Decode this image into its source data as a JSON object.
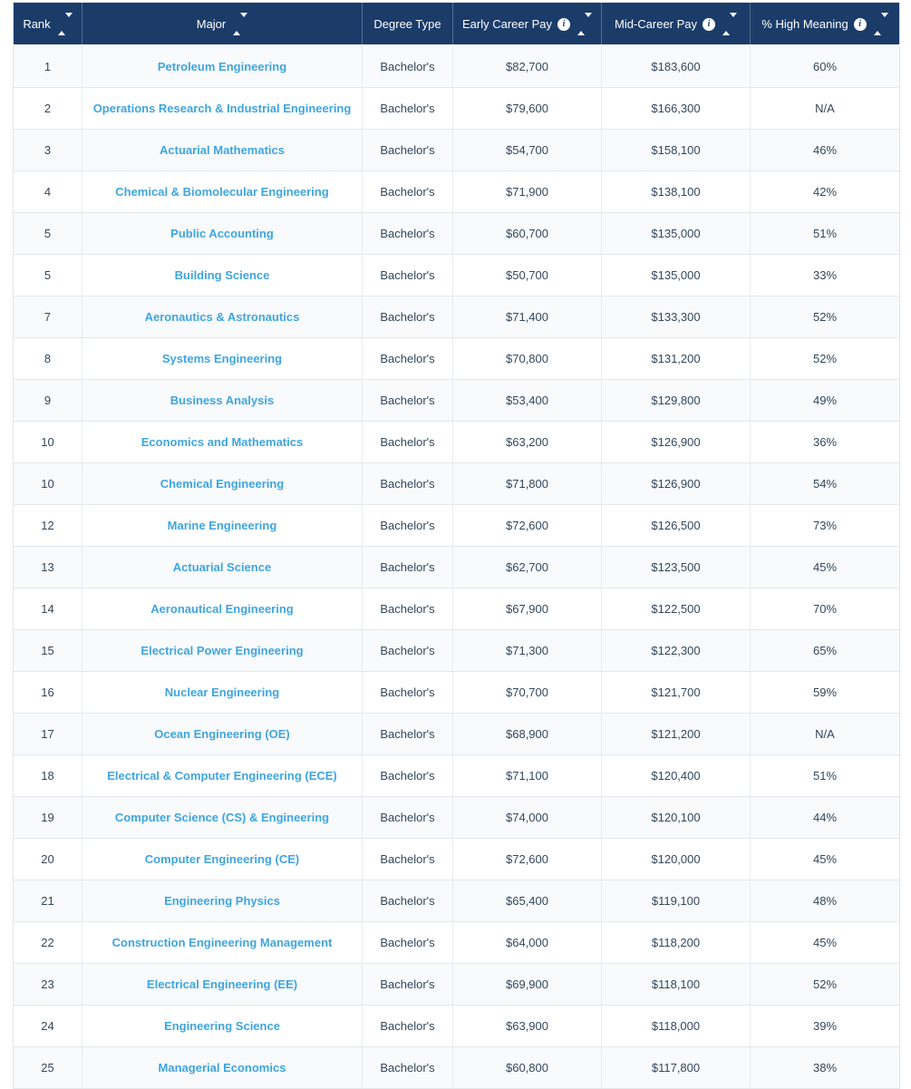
{
  "colors": {
    "header_bg": "#1b3c69",
    "header_text": "#ffffff",
    "link_blue": "#3fa5e0",
    "cell_text": "#33475c",
    "row_stripe": "#f8fafc",
    "border": "#e4e7eb"
  },
  "table": {
    "columns": [
      {
        "key": "rank",
        "label": "Rank",
        "sortable": true,
        "info": false
      },
      {
        "key": "major",
        "label": "Major",
        "sortable": true,
        "info": false
      },
      {
        "key": "degree",
        "label": "Degree Type",
        "sortable": false,
        "info": false
      },
      {
        "key": "early",
        "label": "Early Career Pay",
        "sortable": true,
        "info": true
      },
      {
        "key": "mid",
        "label": "Mid-Career Pay",
        "sortable": true,
        "info": true
      },
      {
        "key": "meaning",
        "label": "% High Meaning",
        "sortable": true,
        "info": true
      }
    ],
    "info_icon_glyph": "i",
    "rows": [
      {
        "rank": "1",
        "major": "Petroleum Engineering",
        "degree": "Bachelor's",
        "early": "$82,700",
        "mid": "$183,600",
        "meaning": "60%"
      },
      {
        "rank": "2",
        "major": "Operations Research & Industrial Engineering",
        "degree": "Bachelor's",
        "early": "$79,600",
        "mid": "$166,300",
        "meaning": "N/A"
      },
      {
        "rank": "3",
        "major": "Actuarial Mathematics",
        "degree": "Bachelor's",
        "early": "$54,700",
        "mid": "$158,100",
        "meaning": "46%"
      },
      {
        "rank": "4",
        "major": "Chemical & Biomolecular Engineering",
        "degree": "Bachelor's",
        "early": "$71,900",
        "mid": "$138,100",
        "meaning": "42%"
      },
      {
        "rank": "5",
        "major": "Public Accounting",
        "degree": "Bachelor's",
        "early": "$60,700",
        "mid": "$135,000",
        "meaning": "51%"
      },
      {
        "rank": "5",
        "major": "Building Science",
        "degree": "Bachelor's",
        "early": "$50,700",
        "mid": "$135,000",
        "meaning": "33%"
      },
      {
        "rank": "7",
        "major": "Aeronautics & Astronautics",
        "degree": "Bachelor's",
        "early": "$71,400",
        "mid": "$133,300",
        "meaning": "52%"
      },
      {
        "rank": "8",
        "major": "Systems Engineering",
        "degree": "Bachelor's",
        "early": "$70,800",
        "mid": "$131,200",
        "meaning": "52%"
      },
      {
        "rank": "9",
        "major": "Business Analysis",
        "degree": "Bachelor's",
        "early": "$53,400",
        "mid": "$129,800",
        "meaning": "49%"
      },
      {
        "rank": "10",
        "major": "Economics and Mathematics",
        "degree": "Bachelor's",
        "early": "$63,200",
        "mid": "$126,900",
        "meaning": "36%"
      },
      {
        "rank": "10",
        "major": "Chemical Engineering",
        "degree": "Bachelor's",
        "early": "$71,800",
        "mid": "$126,900",
        "meaning": "54%"
      },
      {
        "rank": "12",
        "major": "Marine Engineering",
        "degree": "Bachelor's",
        "early": "$72,600",
        "mid": "$126,500",
        "meaning": "73%"
      },
      {
        "rank": "13",
        "major": "Actuarial Science",
        "degree": "Bachelor's",
        "early": "$62,700",
        "mid": "$123,500",
        "meaning": "45%"
      },
      {
        "rank": "14",
        "major": "Aeronautical Engineering",
        "degree": "Bachelor's",
        "early": "$67,900",
        "mid": "$122,500",
        "meaning": "70%"
      },
      {
        "rank": "15",
        "major": "Electrical Power Engineering",
        "degree": "Bachelor's",
        "early": "$71,300",
        "mid": "$122,300",
        "meaning": "65%"
      },
      {
        "rank": "16",
        "major": "Nuclear Engineering",
        "degree": "Bachelor's",
        "early": "$70,700",
        "mid": "$121,700",
        "meaning": "59%"
      },
      {
        "rank": "17",
        "major": "Ocean Engineering (OE)",
        "degree": "Bachelor's",
        "early": "$68,900",
        "mid": "$121,200",
        "meaning": "N/A"
      },
      {
        "rank": "18",
        "major": "Electrical & Computer Engineering (ECE)",
        "degree": "Bachelor's",
        "early": "$71,100",
        "mid": "$120,400",
        "meaning": "51%"
      },
      {
        "rank": "19",
        "major": "Computer Science (CS) & Engineering",
        "degree": "Bachelor's",
        "early": "$74,000",
        "mid": "$120,100",
        "meaning": "44%"
      },
      {
        "rank": "20",
        "major": "Computer Engineering (CE)",
        "degree": "Bachelor's",
        "early": "$72,600",
        "mid": "$120,000",
        "meaning": "45%"
      },
      {
        "rank": "21",
        "major": "Engineering Physics",
        "degree": "Bachelor's",
        "early": "$65,400",
        "mid": "$119,100",
        "meaning": "48%"
      },
      {
        "rank": "22",
        "major": "Construction Engineering Management",
        "degree": "Bachelor's",
        "early": "$64,000",
        "mid": "$118,200",
        "meaning": "45%"
      },
      {
        "rank": "23",
        "major": "Electrical Engineering (EE)",
        "degree": "Bachelor's",
        "early": "$69,900",
        "mid": "$118,100",
        "meaning": "52%"
      },
      {
        "rank": "24",
        "major": "Engineering Science",
        "degree": "Bachelor's",
        "early": "$63,900",
        "mid": "$118,000",
        "meaning": "39%"
      },
      {
        "rank": "25",
        "major": "Managerial Economics",
        "degree": "Bachelor's",
        "early": "$60,800",
        "mid": "$117,800",
        "meaning": "38%"
      }
    ]
  }
}
